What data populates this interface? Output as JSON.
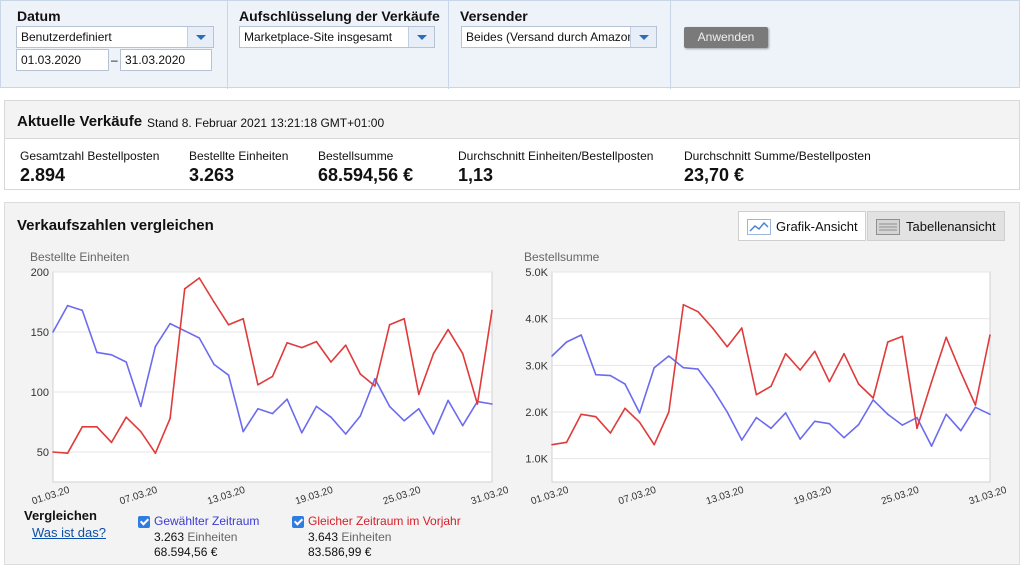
{
  "filters": {
    "datum": {
      "label": "Datum",
      "range_select": "Benutzerdefiniert",
      "from": "01.03.2020",
      "separator": "–",
      "to": "31.03.2020"
    },
    "aufschluesselung": {
      "label": "Aufschlüsselung der Verkäufe",
      "value": "Marketplace-Site insgesamt"
    },
    "versender": {
      "label": "Versender",
      "value": "Beides (Versand durch Amazon u"
    },
    "apply_label": "Anwenden"
  },
  "current_sales": {
    "title": "Aktuelle Verkäufe",
    "stand": "Stand 8. Februar 2021 13:21:18 GMT+01:00",
    "metrics": [
      {
        "label": "Gesamtzahl Bestellposten",
        "value": "2.894"
      },
      {
        "label": "Bestellte Einheiten",
        "value": "3.263"
      },
      {
        "label": "Bestellsumme",
        "value": "68.594,56 €"
      },
      {
        "label": "Durchschnitt Einheiten/Bestellposten",
        "value": "1,13"
      },
      {
        "label": "Durchschnitt Summe/Bestellposten",
        "value": "23,70 €"
      }
    ]
  },
  "compare": {
    "title": "Verkaufszahlen vergleichen",
    "graph_view_label": "Grafik-Ansicht",
    "table_view_label": "Tabellenansicht",
    "vergleichen_label": "Vergleichen",
    "what_is_it_label": "Was ist das?",
    "legend": [
      {
        "name": "Gewählter Zeitraum",
        "color": "#3b3bd6",
        "units": "3.263",
        "unit_label": "Einheiten",
        "sum": "68.594,56 €"
      },
      {
        "name": "Gleicher Zeitraum im Vorjahr",
        "color": "#d6202a",
        "units": "3.643",
        "unit_label": "Einheiten",
        "sum": "83.586,99 €"
      }
    ]
  },
  "chart_data": [
    {
      "type": "line",
      "ylabel": "Bestellte Einheiten",
      "ylim": [
        25,
        200
      ],
      "yticks": [
        "200",
        "150",
        "100",
        "50"
      ],
      "ytick_values": [
        200,
        150,
        100,
        50
      ],
      "xticks": [
        "01.03.20",
        "07.03.20",
        "13.03.20",
        "19.03.20",
        "25.03.20",
        "31.03.20"
      ],
      "x": [
        "01.03.20",
        "02.03.20",
        "03.03.20",
        "04.03.20",
        "05.03.20",
        "06.03.20",
        "07.03.20",
        "08.03.20",
        "09.03.20",
        "10.03.20",
        "11.03.20",
        "12.03.20",
        "13.03.20",
        "14.03.20",
        "15.03.20",
        "16.03.20",
        "17.03.20",
        "18.03.20",
        "19.03.20",
        "20.03.20",
        "21.03.20",
        "22.03.20",
        "23.03.20",
        "24.03.20",
        "25.03.20",
        "26.03.20",
        "27.03.20",
        "28.03.20",
        "29.03.20",
        "30.03.20",
        "31.03.20"
      ],
      "grid": true,
      "series": [
        {
          "name": "Gewählter Zeitraum",
          "color": "#6b6bf0",
          "values": [
            150,
            172,
            168,
            133,
            131,
            125,
            88,
            138,
            157,
            151,
            145,
            123,
            114,
            67,
            86,
            82,
            94,
            66,
            88,
            79,
            65,
            80,
            111,
            88,
            76,
            86,
            65,
            93,
            72,
            92,
            90
          ]
        },
        {
          "name": "Gleicher Zeitraum im Vorjahr",
          "color": "#e03a3a",
          "values": [
            50,
            49,
            71,
            71,
            58,
            79,
            67,
            49,
            78,
            186,
            195,
            175,
            156,
            161,
            106,
            113,
            141,
            137,
            142,
            125,
            139,
            115,
            105,
            156,
            161,
            98,
            132,
            152,
            132,
            90,
            168
          ]
        }
      ]
    },
    {
      "type": "line",
      "ylabel": "Bestellsumme",
      "ylim": [
        500,
        5000
      ],
      "yticks": [
        "5.0K",
        "4.0K",
        "3.0K",
        "2.0K",
        "1.0K"
      ],
      "ytick_values": [
        5000,
        4000,
        3000,
        2000,
        1000
      ],
      "xticks": [
        "01.03.20",
        "07.03.20",
        "13.03.20",
        "19.03.20",
        "25.03.20",
        "31.03.20"
      ],
      "x": [
        "01.03.20",
        "02.03.20",
        "03.03.20",
        "04.03.20",
        "05.03.20",
        "06.03.20",
        "07.03.20",
        "08.03.20",
        "09.03.20",
        "10.03.20",
        "11.03.20",
        "12.03.20",
        "13.03.20",
        "14.03.20",
        "15.03.20",
        "16.03.20",
        "17.03.20",
        "18.03.20",
        "19.03.20",
        "20.03.20",
        "21.03.20",
        "22.03.20",
        "23.03.20",
        "24.03.20",
        "25.03.20",
        "26.03.20",
        "27.03.20",
        "28.03.20",
        "29.03.20",
        "30.03.20",
        "31.03.20"
      ],
      "grid": true,
      "series": [
        {
          "name": "Gewählter Zeitraum",
          "color": "#6b6bf0",
          "values": [
            3200,
            3500,
            3650,
            2800,
            2780,
            2600,
            1980,
            2950,
            3200,
            2950,
            2920,
            2500,
            2000,
            1400,
            1880,
            1650,
            1980,
            1420,
            1800,
            1750,
            1450,
            1730,
            2260,
            1950,
            1720,
            1880,
            1270,
            1950,
            1600,
            2100,
            1950
          ]
        },
        {
          "name": "Gleicher Zeitraum im Vorjahr",
          "color": "#e03a3a",
          "values": [
            1300,
            1350,
            1950,
            1900,
            1550,
            2080,
            1780,
            1300,
            2000,
            4300,
            4150,
            3800,
            3400,
            3800,
            2370,
            2550,
            3250,
            2900,
            3300,
            2650,
            3250,
            2600,
            2300,
            3500,
            3620,
            1650,
            2650,
            3600,
            2850,
            2150,
            3650
          ]
        }
      ]
    }
  ]
}
